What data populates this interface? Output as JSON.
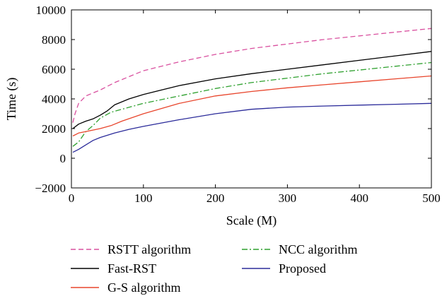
{
  "chart_data": {
    "type": "line",
    "title": "",
    "xlabel": "Scale (M)",
    "ylabel": "Time (s)",
    "xlim": [
      0,
      500
    ],
    "ylim": [
      -2000,
      10000
    ],
    "xticks": [
      0,
      100,
      200,
      300,
      400,
      500
    ],
    "xtick_labels": [
      "0",
      "100",
      "200",
      "300",
      "400",
      "500"
    ],
    "yticks": [
      -2000,
      0,
      2000,
      4000,
      6000,
      8000,
      10000
    ],
    "ytick_labels": [
      "−2000",
      "0",
      "2000",
      "4000",
      "6000",
      "8000",
      "10000"
    ],
    "grid": false,
    "legend_placement": "bottom",
    "series": [
      {
        "name": "RSTT algorithm",
        "color": "#d9509f",
        "dash": "dashed",
        "x": [
          2,
          5,
          10,
          20,
          30,
          40,
          60,
          80,
          100,
          150,
          200,
          250,
          300,
          350,
          400,
          450,
          500
        ],
        "y": [
          2400,
          3000,
          3700,
          4200,
          4400,
          4600,
          5100,
          5500,
          5900,
          6500,
          7000,
          7400,
          7700,
          8000,
          8250,
          8500,
          8750
        ]
      },
      {
        "name": "NCC algorithm",
        "color": "#2ea02e",
        "dash": "dashdot",
        "x": [
          2,
          10,
          20,
          30,
          40,
          55,
          70,
          100,
          150,
          200,
          250,
          300,
          350,
          400,
          450,
          500
        ],
        "y": [
          800,
          1100,
          1800,
          2200,
          2700,
          3100,
          3300,
          3700,
          4200,
          4700,
          5100,
          5400,
          5700,
          5950,
          6200,
          6450
        ]
      },
      {
        "name": "Fast-RST",
        "color": "#000000",
        "dash": "solid",
        "x": [
          2,
          10,
          20,
          30,
          40,
          50,
          60,
          80,
          100,
          150,
          200,
          250,
          300,
          350,
          400,
          450,
          500
        ],
        "y": [
          2000,
          2300,
          2500,
          2650,
          2900,
          3200,
          3600,
          4000,
          4300,
          4900,
          5350,
          5700,
          6000,
          6300,
          6600,
          6900,
          7200
        ]
      },
      {
        "name": "Proposed",
        "color": "#2b2b9a",
        "dash": "solid",
        "x": [
          2,
          10,
          20,
          30,
          40,
          60,
          80,
          100,
          150,
          200,
          250,
          300,
          350,
          400,
          450,
          500
        ],
        "y": [
          400,
          600,
          900,
          1200,
          1400,
          1700,
          1950,
          2150,
          2600,
          3000,
          3300,
          3450,
          3520,
          3580,
          3640,
          3700
        ]
      },
      {
        "name": "G-S algorithm",
        "color": "#e8452c",
        "dash": "solid",
        "x": [
          2,
          10,
          20,
          30,
          40,
          55,
          70,
          100,
          150,
          200,
          250,
          300,
          350,
          400,
          450,
          500
        ],
        "y": [
          1500,
          1700,
          1800,
          1900,
          2000,
          2200,
          2500,
          3000,
          3700,
          4200,
          4500,
          4750,
          4950,
          5150,
          5350,
          5550
        ]
      }
    ]
  }
}
